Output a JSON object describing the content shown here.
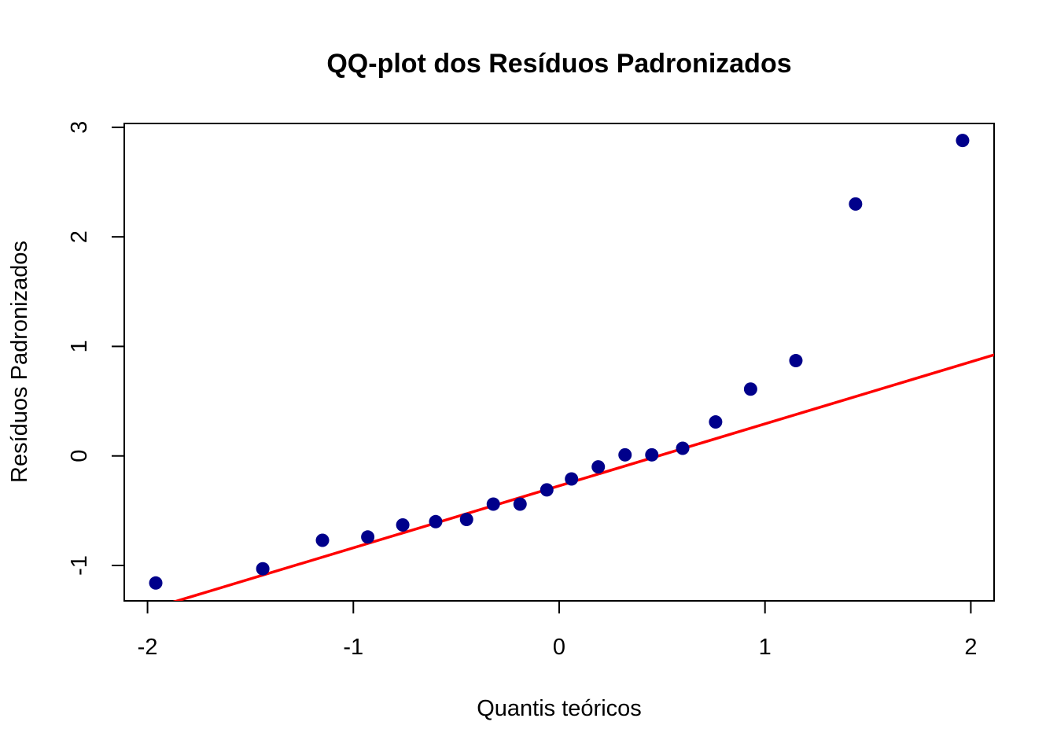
{
  "chart_data": {
    "type": "scatter",
    "title": "QQ-plot dos Resíduos Padronizados",
    "xlabel": "Quantis teóricos",
    "ylabel": "Resíduos Padronizados",
    "xlim": [
      -2.113,
      2.113
    ],
    "ylim": [
      -1.323,
      3.035
    ],
    "x_ticks": [
      -2,
      -1,
      0,
      1,
      2
    ],
    "x_tick_labels": [
      "-2",
      "-1",
      "0",
      "1",
      "2"
    ],
    "y_ticks": [
      -1,
      0,
      1,
      2,
      3
    ],
    "y_tick_labels": [
      "-1",
      "0",
      "1",
      "2",
      "3"
    ],
    "grid": false,
    "legend": "none",
    "point_color": "#00008B",
    "line_color": "#FF0000",
    "points": {
      "x": [
        -1.96,
        -1.44,
        -1.15,
        -0.93,
        -0.76,
        -0.6,
        -0.45,
        -0.32,
        -0.19,
        -0.06,
        0.06,
        0.19,
        0.32,
        0.45,
        0.6,
        0.76,
        0.93,
        1.15,
        1.44,
        1.96
      ],
      "y": [
        -1.16,
        -1.03,
        -0.77,
        -0.74,
        -0.63,
        -0.6,
        -0.58,
        -0.44,
        -0.44,
        -0.31,
        -0.21,
        -0.1,
        0.01,
        0.01,
        0.07,
        0.31,
        0.61,
        0.87,
        2.3,
        2.88
      ]
    },
    "reference_line": {
      "intercept": -0.273,
      "slope": 0.566
    }
  }
}
